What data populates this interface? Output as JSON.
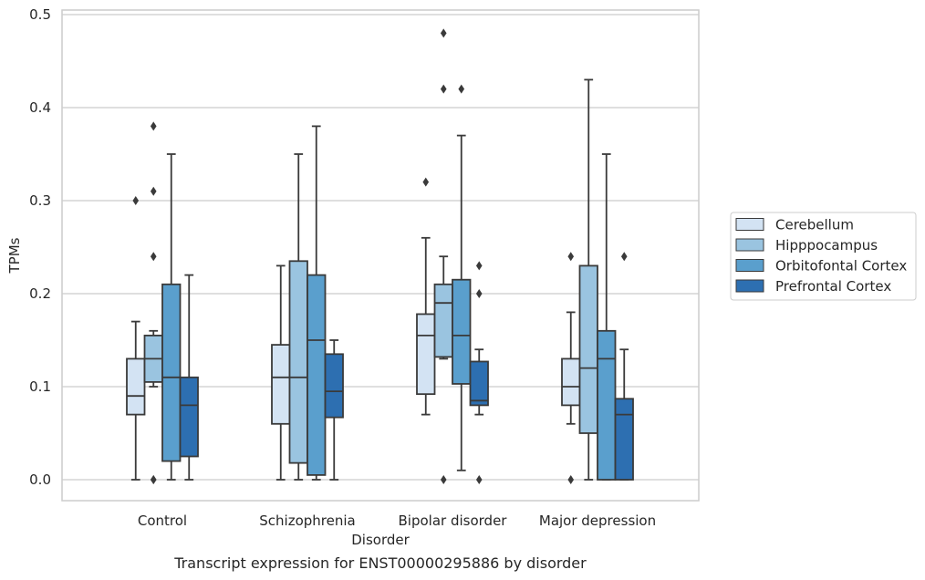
{
  "chart_data": {
    "type": "box",
    "caption": "Transcript expression for ENST00000295886 by disorder",
    "xlabel": "Disorder",
    "ylabel": "TPMs",
    "ylim": [
      -0.023,
      0.505
    ],
    "yticks": [
      "0.0",
      "0.1",
      "0.2",
      "0.3",
      "0.4",
      "0.5"
    ],
    "grid": "horizontal",
    "legend_position": "right",
    "categories": [
      "Control",
      "Schizophrenia",
      "Bipolar disorder",
      "Major depression"
    ],
    "series": [
      {
        "name": "Cerebellum",
        "color": "#d3e3f3",
        "boxes": [
          {
            "whisker_low": 0.0,
            "q1": 0.07,
            "median": 0.09,
            "q3": 0.13,
            "whisker_high": 0.17,
            "outliers": [
              0.3
            ]
          },
          {
            "whisker_low": 0.0,
            "q1": 0.06,
            "median": 0.11,
            "q3": 0.145,
            "whisker_high": 0.23,
            "outliers": []
          },
          {
            "whisker_low": 0.07,
            "q1": 0.092,
            "median": 0.155,
            "q3": 0.178,
            "whisker_high": 0.26,
            "outliers": [
              0.32
            ]
          },
          {
            "whisker_low": 0.06,
            "q1": 0.08,
            "median": 0.1,
            "q3": 0.13,
            "whisker_high": 0.18,
            "outliers": [
              0.24,
              0.0
            ]
          }
        ]
      },
      {
        "name": "Hipppocampus",
        "color": "#9ac4e0",
        "boxes": [
          {
            "whisker_low": 0.1,
            "q1": 0.105,
            "median": 0.13,
            "q3": 0.155,
            "whisker_high": 0.16,
            "outliers": [
              0.38,
              0.31,
              0.24,
              0.0,
              0.0
            ]
          },
          {
            "whisker_low": 0.0,
            "q1": 0.018,
            "median": 0.11,
            "q3": 0.235,
            "whisker_high": 0.35,
            "outliers": []
          },
          {
            "whisker_low": 0.13,
            "q1": 0.132,
            "median": 0.19,
            "q3": 0.21,
            "whisker_high": 0.24,
            "outliers": [
              0.48,
              0.42,
              0.0
            ]
          },
          {
            "whisker_low": 0.0,
            "q1": 0.05,
            "median": 0.12,
            "q3": 0.23,
            "whisker_high": 0.43,
            "outliers": []
          }
        ]
      },
      {
        "name": "Orbitofontal Cortex",
        "color": "#5a9fcd",
        "boxes": [
          {
            "whisker_low": 0.0,
            "q1": 0.02,
            "median": 0.11,
            "q3": 0.21,
            "whisker_high": 0.35,
            "outliers": []
          },
          {
            "whisker_low": 0.0,
            "q1": 0.005,
            "median": 0.15,
            "q3": 0.22,
            "whisker_high": 0.38,
            "outliers": []
          },
          {
            "whisker_low": 0.01,
            "q1": 0.103,
            "median": 0.155,
            "q3": 0.215,
            "whisker_high": 0.37,
            "outliers": [
              0.42
            ]
          },
          {
            "whisker_low": 0.0,
            "q1": 0.0,
            "median": 0.13,
            "q3": 0.16,
            "whisker_high": 0.35,
            "outliers": []
          }
        ]
      },
      {
        "name": "Prefrontal Cortex",
        "color": "#2d6fb1",
        "boxes": [
          {
            "whisker_low": 0.0,
            "q1": 0.025,
            "median": 0.08,
            "q3": 0.11,
            "whisker_high": 0.22,
            "outliers": []
          },
          {
            "whisker_low": 0.0,
            "q1": 0.067,
            "median": 0.095,
            "q3": 0.135,
            "whisker_high": 0.15,
            "outliers": []
          },
          {
            "whisker_low": 0.07,
            "q1": 0.08,
            "median": 0.085,
            "q3": 0.127,
            "whisker_high": 0.14,
            "outliers": [
              0.23,
              0.2,
              0.0
            ]
          },
          {
            "whisker_low": 0.0,
            "q1": 0.0,
            "median": 0.07,
            "q3": 0.087,
            "whisker_high": 0.14,
            "outliers": [
              0.24
            ]
          }
        ]
      }
    ]
  }
}
